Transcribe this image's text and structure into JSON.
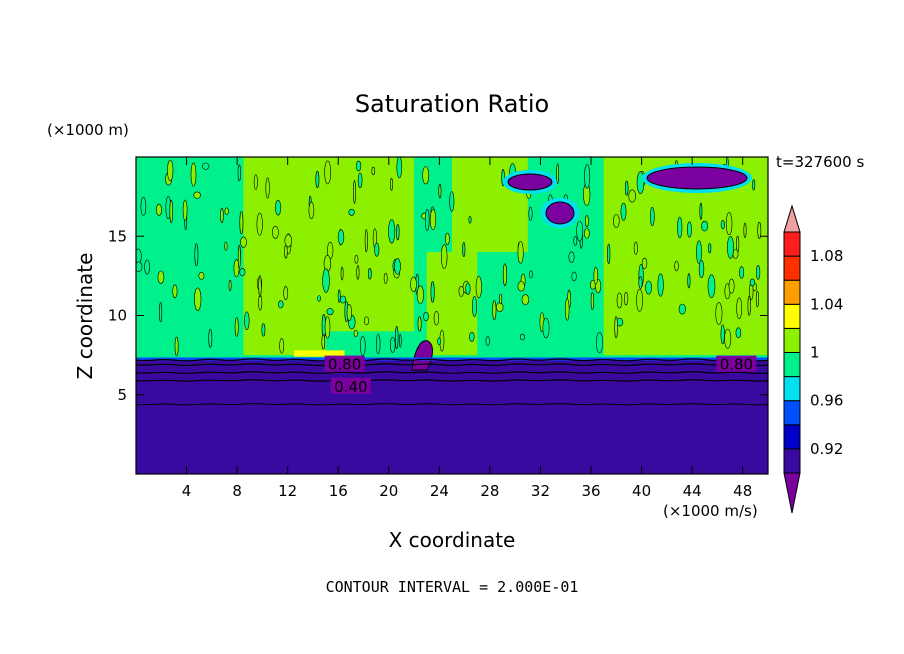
{
  "chart_data": {
    "type": "heatmap",
    "title": "Saturation Ratio",
    "xlabel": "X coordinate",
    "ylabel": "Z coordinate",
    "x_unit": "(×1000 m/s)",
    "y_unit": "(×1000 m)",
    "time_label": "t=327600 s",
    "footer": "CONTOUR INTERVAL = 2.000E-01",
    "xlim": [
      0,
      50
    ],
    "ylim": [
      0,
      20
    ],
    "x_ticks": [
      4,
      8,
      12,
      16,
      20,
      24,
      28,
      32,
      36,
      40,
      44,
      48
    ],
    "y_ticks": [
      5,
      10,
      15
    ],
    "grid": false,
    "colorbar": {
      "levels": [
        0.9,
        0.92,
        0.94,
        0.96,
        0.98,
        1.0,
        1.02,
        1.04,
        1.06,
        1.08,
        1.1
      ],
      "tick_labels": [
        "0.92",
        "0.96",
        "1",
        "1.04",
        "1.08"
      ],
      "colors": [
        "#7a00a0",
        "#3a0aa0",
        "#0000c8",
        "#0050ff",
        "#00e0f0",
        "#00f08c",
        "#8cf000",
        "#ffff00",
        "#ff9e00",
        "#ff3000",
        "#ff1e1e",
        "#f0a0a0"
      ]
    },
    "regions": [
      {
        "x_from": 0,
        "x_to": 50,
        "z_from": 0,
        "z_to": 7.2,
        "value": 0.9
      },
      {
        "x_from": 0,
        "x_to": 50,
        "z_from": 7.2,
        "z_to": 20,
        "value": 0.99
      },
      {
        "x_from": 8.5,
        "x_to": 15,
        "z_from": 7.5,
        "z_to": 20,
        "value": 1.01
      },
      {
        "x_from": 15,
        "x_to": 22,
        "z_from": 9,
        "z_to": 20,
        "value": 1.01
      },
      {
        "x_from": 23,
        "x_to": 27,
        "z_from": 7.5,
        "z_to": 14,
        "value": 1.01
      },
      {
        "x_from": 25,
        "x_to": 31,
        "z_from": 14,
        "z_to": 20,
        "value": 1.01
      },
      {
        "x_from": 37,
        "x_to": 50,
        "z_from": 7.5,
        "z_to": 20,
        "value": 1.01
      },
      {
        "x_from": 12.5,
        "x_to": 16.5,
        "z_from": 7.4,
        "z_to": 7.8,
        "value": 1.03
      }
    ],
    "contour_labels": [
      {
        "text": "0.80",
        "x": 16.5,
        "z": 6.9
      },
      {
        "text": "0.40",
        "x": 17,
        "z": 5.5
      },
      {
        "text": "0.80",
        "x": 47.5,
        "z": 6.9
      }
    ]
  }
}
